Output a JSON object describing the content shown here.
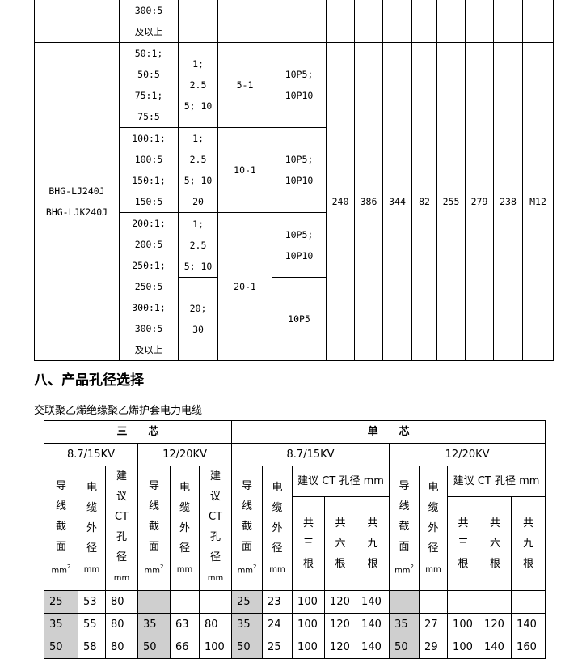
{
  "top_table": {
    "prev_row": {
      "ratio": "300:5\n及以上"
    },
    "model": "BHG-LJ240J\nBHG-LJK240J",
    "groups": [
      {
        "ratio": "50:1;\n50:5\n75:1;\n75:5",
        "va": "1;\n2.5\n5; 10",
        "acc": "5-1",
        "cls": "10P5;\n10P10"
      },
      {
        "ratio": "100:1;\n100:5\n150:1;\n150:5",
        "va": "1;\n2.5\n5; 10\n20",
        "acc": "10-1",
        "cls": "10P5;\n10P10"
      },
      {
        "ratio": "200:1;\n200:5\n250:1;\n250:5\n300:1;\n300:5\n及以上",
        "va": "1;\n2.5\n5; 10",
        "va2": "20;\n30",
        "acc": "20-1",
        "cls": "10P5;\n10P10",
        "cls2": "10P5"
      }
    ],
    "dims": [
      "240",
      "386",
      "344",
      "82",
      "255",
      "279",
      "238",
      "M12"
    ]
  },
  "section_title": "八、产品孔径选择",
  "subtitle": "交联聚乙烯绝缘聚乙烯护套电力电缆",
  "hole_table": {
    "three_core": "三　　芯",
    "single_core": "单　　芯",
    "kv1": "8.7/15KV",
    "kv2": "12/20KV",
    "h_area": "导\n线\n截\n面",
    "h_area_unit": "mm",
    "h_diam": "电\n缆\n外\n径",
    "h_unit": "mm",
    "h_ct": "建\n议\nCT\n孔\n径",
    "h_ct_row": "建议 CT 孔径 mm",
    "h_three": "共\n三\n根",
    "h_six": "共\n六\n根",
    "h_nine": "共\n九\n根",
    "rows": [
      [
        "25",
        "53",
        "80",
        "",
        "",
        "",
        "25",
        "23",
        "100",
        "120",
        "140",
        "",
        "",
        "",
        "",
        ""
      ],
      [
        "35",
        "55",
        "80",
        "35",
        "63",
        "80",
        "35",
        "24",
        "100",
        "120",
        "140",
        "35",
        "27",
        "100",
        "120",
        "140"
      ],
      [
        "50",
        "58",
        "80",
        "50",
        "66",
        "100",
        "50",
        "25",
        "100",
        "120",
        "140",
        "50",
        "29",
        "100",
        "140",
        "160"
      ]
    ],
    "highlight_color": "#cfcfcf"
  }
}
